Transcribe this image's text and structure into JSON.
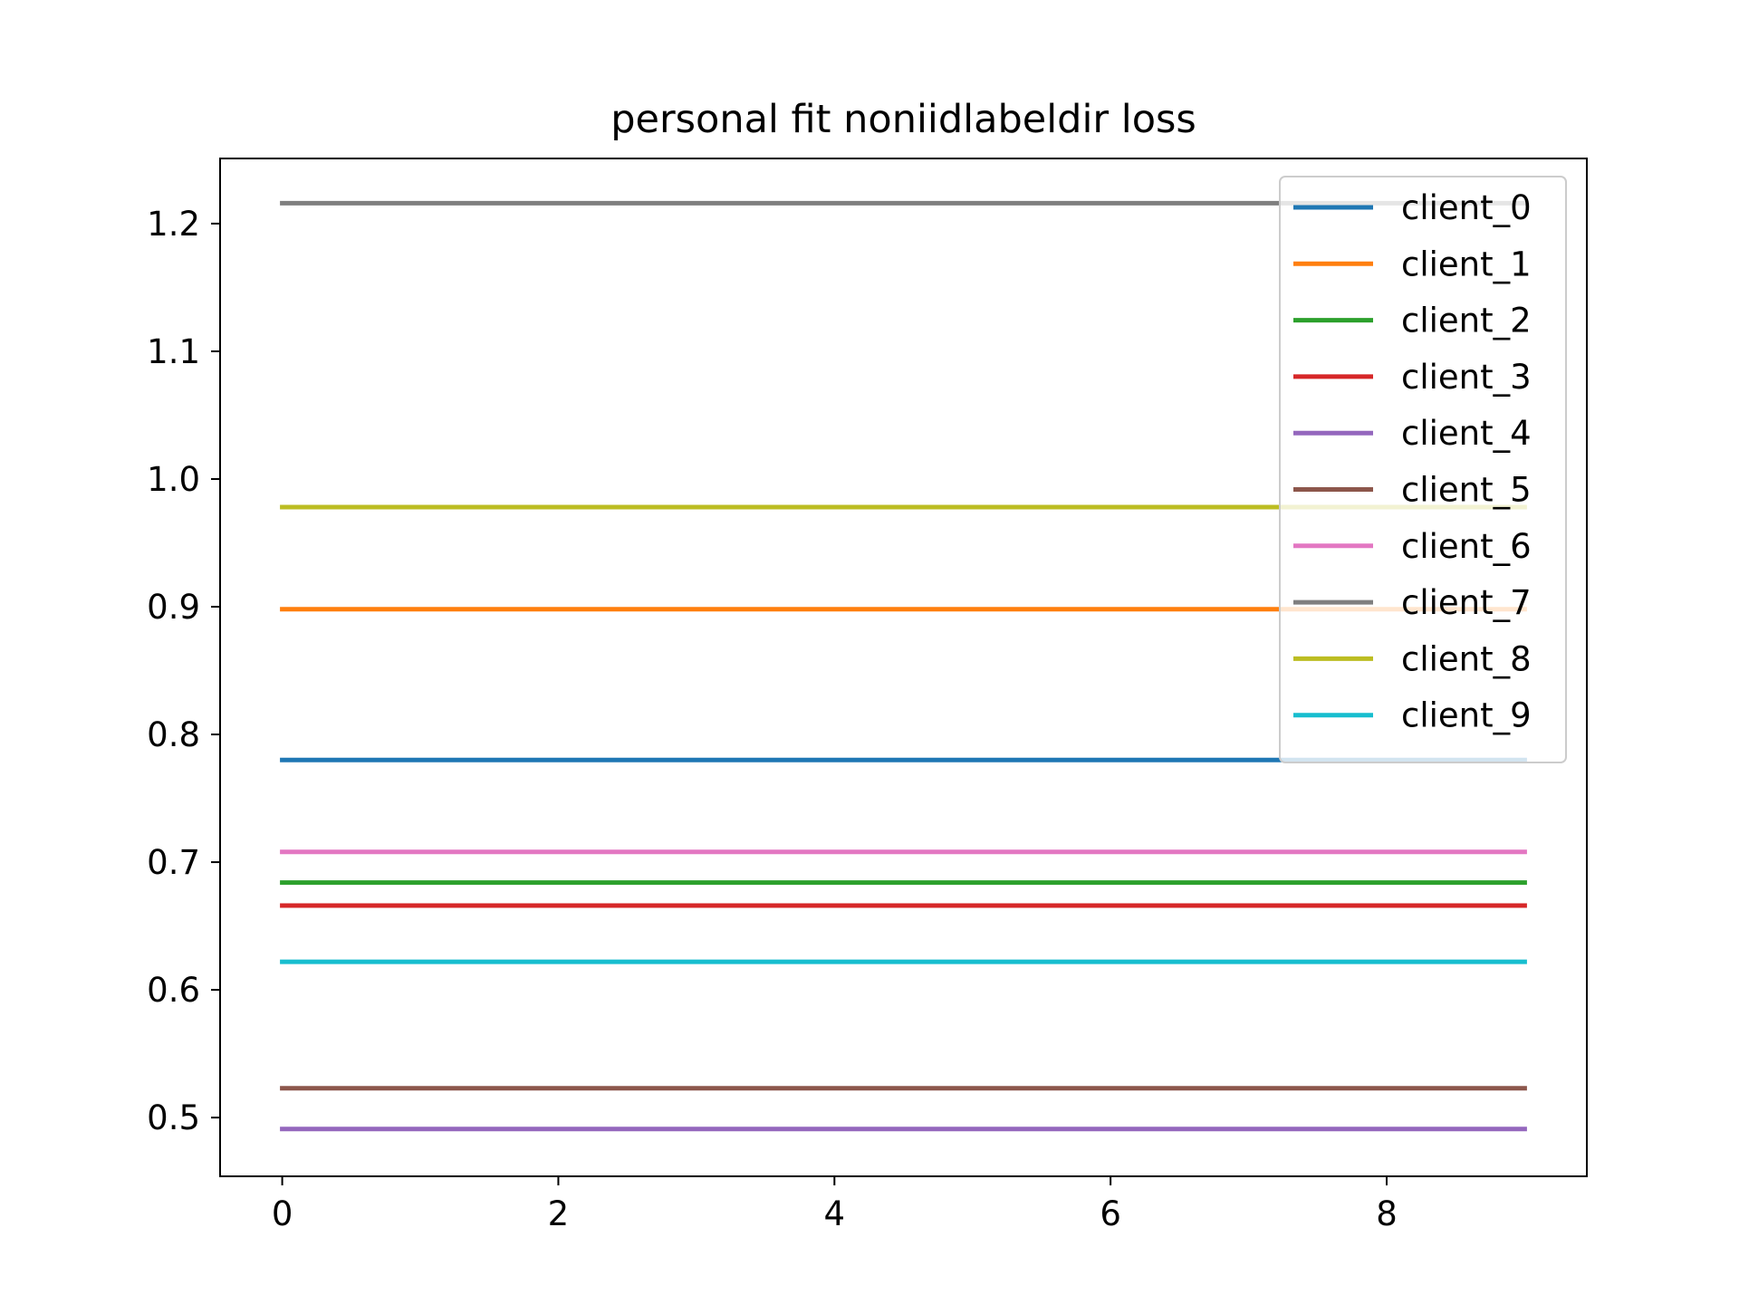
{
  "chart_data": {
    "type": "line",
    "title": "personal fit noniidlabeldir loss",
    "xlabel": "",
    "ylabel": "",
    "x": [
      0,
      1,
      2,
      3,
      4,
      5,
      6,
      7,
      8,
      9
    ],
    "xlim": [
      -0.45,
      9.45
    ],
    "ylim": [
      0.454,
      1.251
    ],
    "xticks": [
      0,
      2,
      4,
      6,
      8
    ],
    "yticks": [
      0.5,
      0.6,
      0.7,
      0.8,
      0.9,
      1.0,
      1.1,
      1.2
    ],
    "ytick_labels": [
      "0.5",
      "0.6",
      "0.7",
      "0.8",
      "0.9",
      "1.0",
      "1.1",
      "1.2"
    ],
    "grid": false,
    "legend_position": "top-right",
    "series": [
      {
        "name": "client_0",
        "color": "#1f77b4",
        "values": [
          0.78,
          0.78,
          0.78,
          0.78,
          0.78,
          0.78,
          0.78,
          0.78,
          0.78,
          0.78
        ]
      },
      {
        "name": "client_1",
        "color": "#ff7f0e",
        "values": [
          0.898,
          0.898,
          0.898,
          0.898,
          0.898,
          0.898,
          0.898,
          0.898,
          0.898,
          0.898
        ]
      },
      {
        "name": "client_2",
        "color": "#2ca02c",
        "values": [
          0.684,
          0.684,
          0.684,
          0.684,
          0.684,
          0.684,
          0.684,
          0.684,
          0.684,
          0.684
        ]
      },
      {
        "name": "client_3",
        "color": "#d62728",
        "values": [
          0.666,
          0.666,
          0.666,
          0.666,
          0.666,
          0.666,
          0.666,
          0.666,
          0.666,
          0.666
        ]
      },
      {
        "name": "client_4",
        "color": "#9467bd",
        "values": [
          0.491,
          0.491,
          0.491,
          0.491,
          0.491,
          0.491,
          0.491,
          0.491,
          0.491,
          0.491
        ]
      },
      {
        "name": "client_5",
        "color": "#8c564b",
        "values": [
          0.523,
          0.523,
          0.523,
          0.523,
          0.523,
          0.523,
          0.523,
          0.523,
          0.523,
          0.523
        ]
      },
      {
        "name": "client_6",
        "color": "#e377c2",
        "values": [
          0.708,
          0.708,
          0.708,
          0.708,
          0.708,
          0.708,
          0.708,
          0.708,
          0.708,
          0.708
        ]
      },
      {
        "name": "client_7",
        "color": "#7f7f7f",
        "values": [
          1.216,
          1.216,
          1.216,
          1.216,
          1.216,
          1.216,
          1.216,
          1.216,
          1.216,
          1.216
        ]
      },
      {
        "name": "client_8",
        "color": "#bcbd22",
        "values": [
          0.978,
          0.978,
          0.978,
          0.978,
          0.978,
          0.978,
          0.978,
          0.978,
          0.978,
          0.978
        ]
      },
      {
        "name": "client_9",
        "color": "#17becf",
        "values": [
          0.622,
          0.622,
          0.622,
          0.622,
          0.622,
          0.622,
          0.622,
          0.622,
          0.622,
          0.622
        ]
      }
    ]
  }
}
